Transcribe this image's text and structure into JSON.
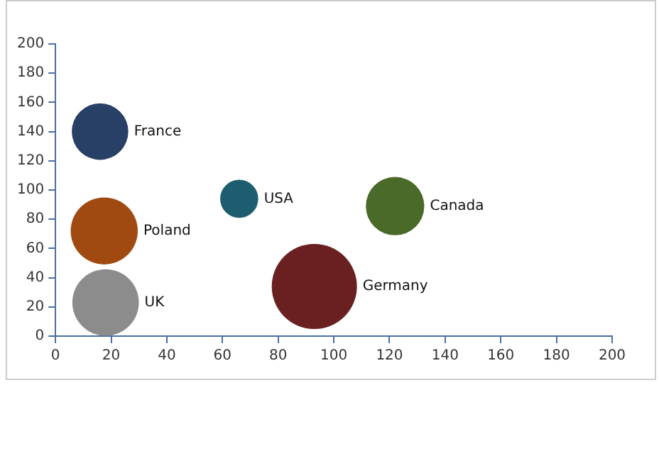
{
  "chart_data": {
    "type": "bubble",
    "xlim": [
      0,
      200
    ],
    "xticks": [
      0,
      20,
      40,
      60,
      80,
      100,
      120,
      140,
      160,
      180,
      200
    ],
    "ylim": [
      0,
      200
    ],
    "yticks": [
      0,
      20,
      40,
      60,
      80,
      100,
      120,
      140,
      160,
      180,
      200
    ],
    "grid": false,
    "legend": false,
    "series": [
      {
        "name": "France",
        "color": "#283f66",
        "x": [
          16
        ],
        "values": [
          140
        ],
        "sizes": [
          0.44
        ]
      },
      {
        "name": "USA",
        "color": "#1e5d6f",
        "x": [
          66
        ],
        "values": [
          94
        ],
        "sizes": [
          0.2
        ]
      },
      {
        "name": "Canada",
        "color": "#4a6a29",
        "x": [
          122
        ],
        "values": [
          89
        ],
        "sizes": [
          0.47
        ]
      },
      {
        "name": "Poland",
        "color": "#a04a12",
        "x": [
          17.5
        ],
        "values": [
          72
        ],
        "sizes": [
          0.62
        ]
      },
      {
        "name": "UK",
        "color": "#8c8c8c",
        "x": [
          18
        ],
        "values": [
          23
        ],
        "sizes": [
          0.61
        ]
      },
      {
        "name": "Germany",
        "color": "#6a2020",
        "x": [
          93
        ],
        "values": [
          34
        ],
        "sizes": [
          1
        ]
      }
    ]
  }
}
